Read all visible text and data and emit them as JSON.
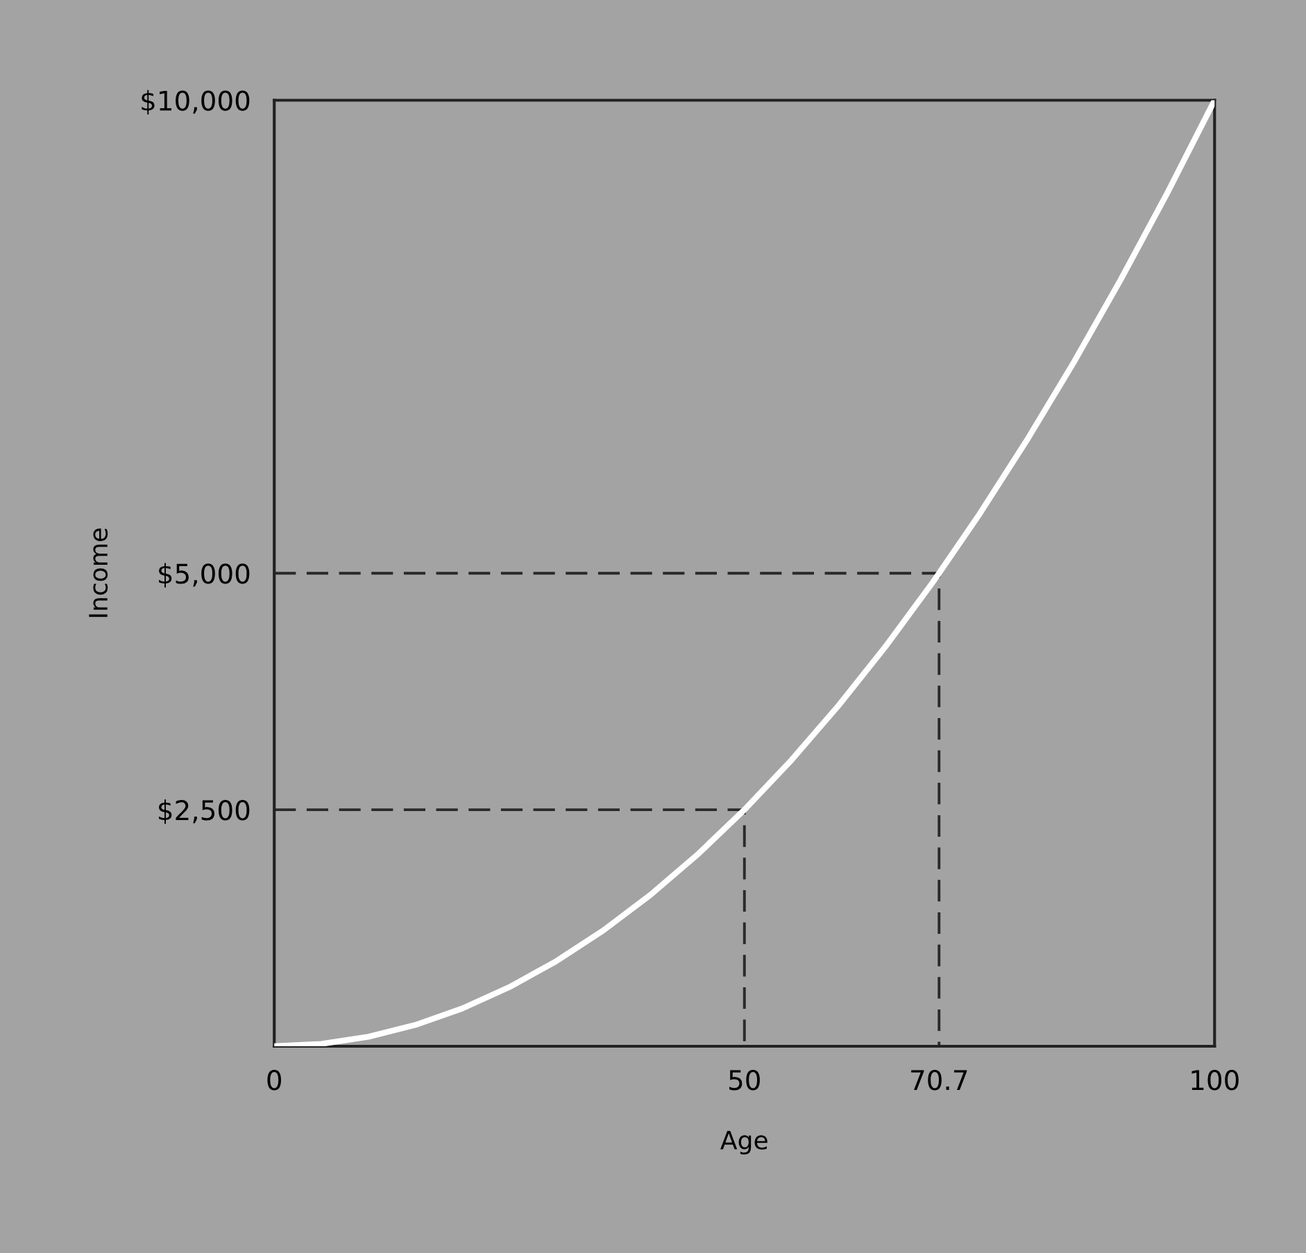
{
  "chart_data": {
    "type": "line",
    "xlabel": "Age",
    "ylabel": "Income",
    "xlim": [
      0,
      100
    ],
    "ylim": [
      0,
      10000
    ],
    "xticks": [
      0,
      50,
      70.7,
      100
    ],
    "yticks": [
      {
        "value": 2500,
        "label": "$2,500"
      },
      {
        "value": 5000,
        "label": "$5,000"
      },
      {
        "value": 10000,
        "label": "$10,000"
      }
    ],
    "grid": false,
    "legend": false,
    "marker": "none",
    "line_style": "solid",
    "series": [
      {
        "color": "#ffffff",
        "x": [
          0,
          5,
          10,
          15,
          20,
          25,
          30,
          35,
          40,
          45,
          50,
          55,
          60,
          65,
          70,
          70.7,
          75,
          80,
          85,
          90,
          95,
          100
        ],
        "values": [
          0,
          25,
          100,
          225,
          400,
          625,
          900,
          1225,
          1600,
          2025,
          2500,
          3025,
          3600,
          4225,
          4900,
          5000,
          5625,
          6400,
          7225,
          8100,
          9025,
          10000
        ]
      },
      {
        "color": "#2a2a2a",
        "line_style": "dashed",
        "x": [
          0,
          50,
          50
        ],
        "values": [
          2500,
          2500,
          0
        ]
      },
      {
        "color": "#2a2a2a",
        "line_style": "dashed",
        "x": [
          0,
          70.7,
          70.7
        ],
        "values": [
          5000,
          5000,
          0
        ]
      }
    ]
  }
}
